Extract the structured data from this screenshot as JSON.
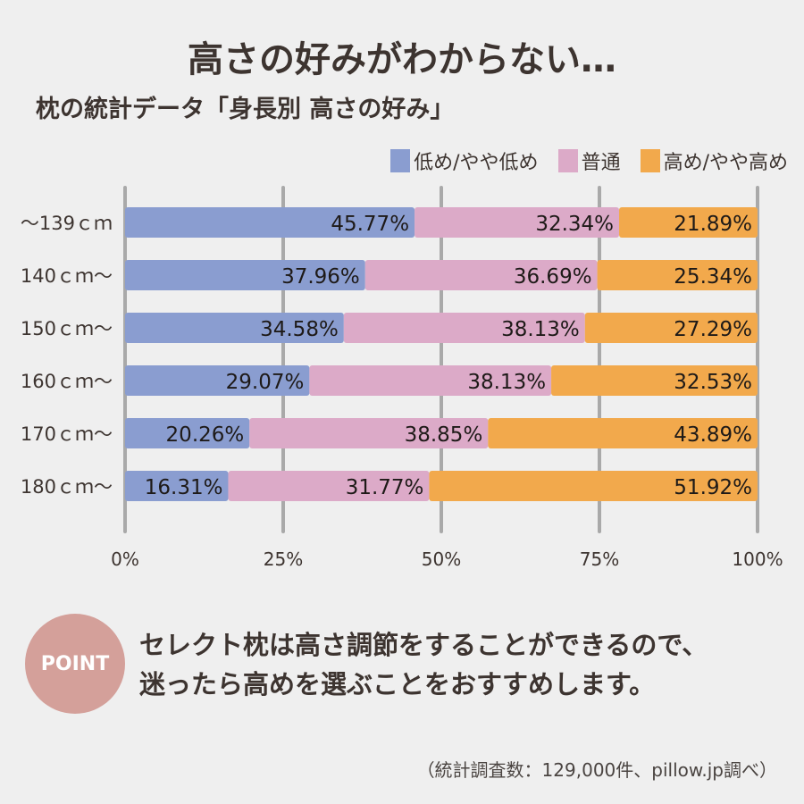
{
  "title": "高さの好みがわからない…",
  "subtitle": "枕の統計データ「身長別 高さの好み」",
  "point": {
    "badge": "POINT",
    "lines": [
      "セレクト枕は高さ調節をすることができるので、",
      "迷ったら高めを選ぶことをおすすめします。"
    ]
  },
  "source": "（統計調査数：129,000件、pillow.jp調べ）",
  "chart_data": {
    "type": "bar",
    "orientation": "horizontal",
    "stacked": true,
    "categories": [
      "～139ｃｍ",
      "140ｃｍ～",
      "150ｃｍ～",
      "160ｃｍ～",
      "170ｃｍ～",
      "180ｃｍ～"
    ],
    "series": [
      {
        "name": "低め/やや低め",
        "color": "#8a9dd0",
        "values": [
          45.77,
          37.96,
          34.58,
          29.07,
          20.26,
          16.31
        ]
      },
      {
        "name": "普通",
        "color": "#dcaac8",
        "values": [
          32.34,
          36.69,
          38.13,
          38.13,
          38.85,
          31.77
        ]
      },
      {
        "name": "高め/やや高め",
        "color": "#f2a94c",
        "values": [
          21.89,
          25.34,
          27.29,
          32.53,
          43.89,
          51.92
        ]
      }
    ],
    "xticks": [
      "0%",
      "25%",
      "50%",
      "75%",
      "100%"
    ],
    "xlim": [
      0,
      100
    ],
    "grid": true,
    "legend": "top-right",
    "value_suffix": "%"
  }
}
